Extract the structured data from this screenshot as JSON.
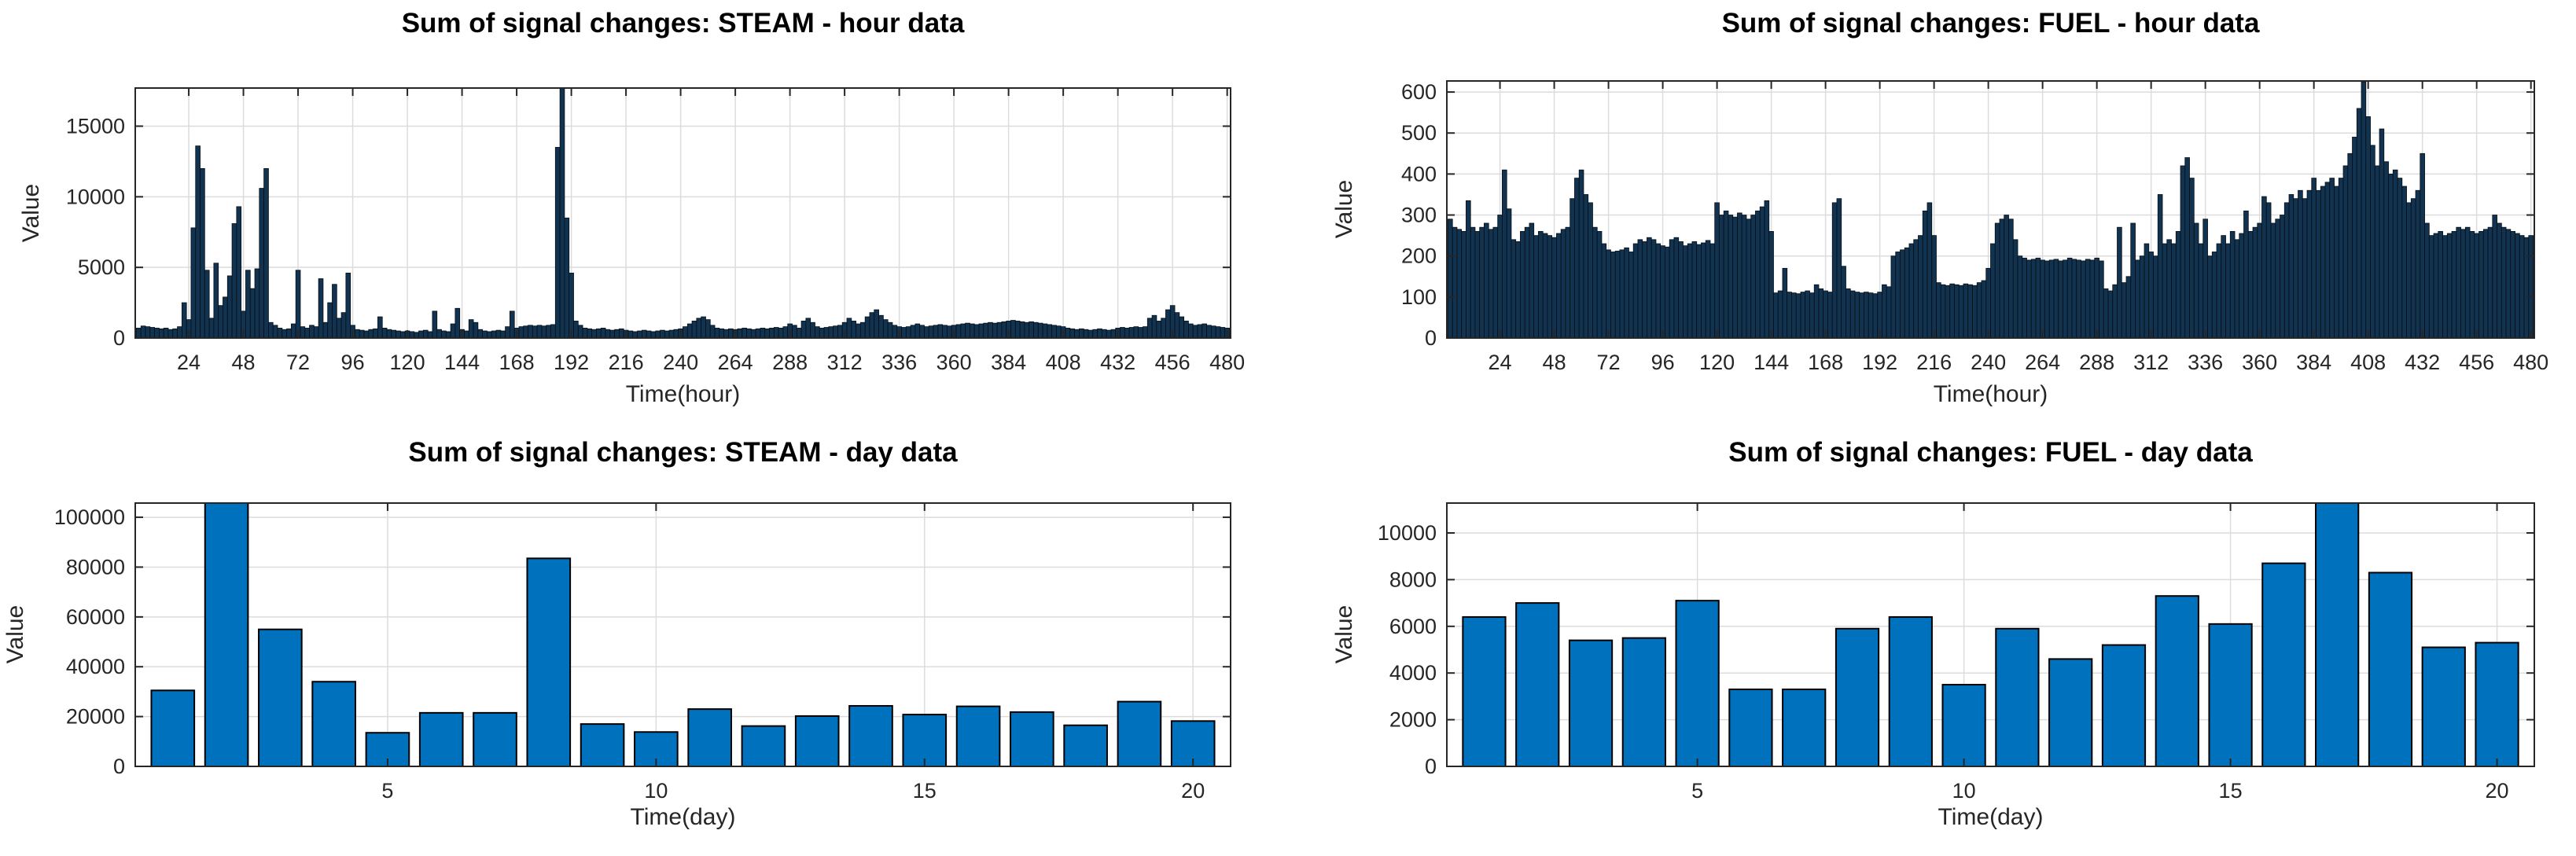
{
  "chart_data": [
    {
      "id": "steam-hour",
      "type": "bar",
      "title": "Sum of signal changes: STEAM - hour data",
      "xlabel": "Time(hour)",
      "ylabel": "Value",
      "x_start": 2,
      "x_step": 2,
      "xlim": [
        0.5,
        481.5
      ],
      "ylim": [
        0,
        17700
      ],
      "xticks": [
        24,
        48,
        72,
        96,
        120,
        144,
        168,
        192,
        216,
        240,
        264,
        288,
        312,
        336,
        360,
        384,
        408,
        432,
        456,
        480
      ],
      "yticks": [
        0,
        5000,
        10000,
        15000
      ],
      "grid": true,
      "bar_color": "#123350",
      "bar_edge": "#050d15",
      "bar_edge_width": 0.8,
      "bar_rel_width": 1.0,
      "values": [
        700,
        850,
        800,
        750,
        700,
        650,
        700,
        600,
        650,
        800,
        2500,
        1300,
        7800,
        13600,
        12000,
        4800,
        1400,
        5300,
        2300,
        2900,
        4400,
        8100,
        9300,
        1900,
        4800,
        3500,
        4900,
        10600,
        12000,
        1100,
        900,
        700,
        600,
        650,
        1000,
        4800,
        800,
        700,
        900,
        800,
        4200,
        1100,
        2500,
        3800,
        1400,
        1800,
        4600,
        900,
        600,
        550,
        500,
        600,
        650,
        1500,
        700,
        600,
        550,
        500,
        450,
        500,
        450,
        400,
        500,
        550,
        450,
        1900,
        600,
        500,
        450,
        1000,
        2100,
        600,
        500,
        1300,
        1100,
        600,
        500,
        450,
        500,
        550,
        500,
        800,
        1900,
        700,
        800,
        850,
        900,
        850,
        900,
        850,
        900,
        950,
        13500,
        17700,
        8500,
        4600,
        1200,
        900,
        700,
        650,
        600,
        650,
        700,
        600,
        550,
        600,
        650,
        550,
        500,
        450,
        500,
        550,
        500,
        450,
        500,
        550,
        500,
        550,
        600,
        650,
        800,
        1000,
        1200,
        1400,
        1500,
        1300,
        900,
        700,
        650,
        600,
        650,
        600,
        650,
        700,
        650,
        600,
        650,
        700,
        650,
        700,
        750,
        700,
        800,
        1000,
        900,
        700,
        1200,
        1400,
        1100,
        800,
        700,
        750,
        800,
        850,
        900,
        1100,
        1400,
        1200,
        1000,
        1100,
        1500,
        1800,
        2000,
        1600,
        1300,
        1100,
        900,
        800,
        750,
        800,
        900,
        1000,
        900,
        800,
        850,
        900,
        950,
        900,
        850,
        900,
        950,
        1000,
        1050,
        1000,
        950,
        1000,
        1050,
        1100,
        1050,
        1100,
        1150,
        1200,
        1250,
        1200,
        1150,
        1100,
        1150,
        1100,
        1050,
        1000,
        950,
        900,
        850,
        800,
        700,
        650,
        600,
        650,
        600,
        550,
        600,
        650,
        600,
        550,
        600,
        700,
        750,
        700,
        750,
        800,
        750,
        800,
        1400,
        1600,
        1200,
        1400,
        2000,
        2300,
        1800,
        1500,
        1200,
        1000,
        900,
        950,
        1000,
        900,
        850,
        800,
        750,
        700
      ]
    },
    {
      "id": "fuel-hour",
      "type": "bar",
      "title": "Sum of signal changes: FUEL - hour data",
      "xlabel": "Time(hour)",
      "ylabel": "Value",
      "x_start": 2,
      "x_step": 2,
      "xlim": [
        0.5,
        481.5
      ],
      "ylim": [
        0,
        627
      ],
      "xticks": [
        24,
        48,
        72,
        96,
        120,
        144,
        168,
        192,
        216,
        240,
        264,
        288,
        312,
        336,
        360,
        384,
        408,
        432,
        456,
        480
      ],
      "yticks": [
        0,
        100,
        200,
        300,
        400,
        500,
        600
      ],
      "grid": true,
      "bar_color": "#123350",
      "bar_edge": "#050d15",
      "bar_edge_width": 0.8,
      "bar_rel_width": 1.0,
      "values": [
        290,
        270,
        265,
        260,
        335,
        270,
        260,
        270,
        280,
        265,
        270,
        300,
        410,
        315,
        240,
        235,
        260,
        270,
        280,
        250,
        260,
        255,
        250,
        245,
        255,
        265,
        270,
        340,
        390,
        410,
        350,
        330,
        270,
        260,
        230,
        215,
        210,
        212,
        215,
        220,
        210,
        230,
        240,
        235,
        245,
        240,
        230,
        225,
        222,
        240,
        245,
        235,
        225,
        230,
        235,
        228,
        232,
        238,
        230,
        330,
        300,
        310,
        300,
        295,
        305,
        300,
        290,
        300,
        310,
        320,
        335,
        260,
        110,
        115,
        170,
        112,
        110,
        108,
        112,
        115,
        110,
        130,
        120,
        115,
        112,
        330,
        340,
        175,
        120,
        115,
        112,
        110,
        112,
        110,
        108,
        112,
        130,
        125,
        200,
        210,
        215,
        220,
        230,
        240,
        250,
        310,
        330,
        250,
        135,
        130,
        128,
        132,
        130,
        128,
        132,
        130,
        128,
        135,
        140,
        170,
        230,
        280,
        290,
        300,
        290,
        240,
        200,
        195,
        190,
        192,
        195,
        190,
        188,
        190,
        192,
        188,
        190,
        195,
        192,
        190,
        188,
        192,
        190,
        195,
        188,
        120,
        115,
        130,
        270,
        135,
        150,
        280,
        190,
        200,
        230,
        210,
        200,
        350,
        230,
        240,
        230,
        260,
        420,
        440,
        390,
        280,
        230,
        290,
        200,
        210,
        230,
        250,
        230,
        260,
        240,
        255,
        310,
        260,
        270,
        280,
        345,
        330,
        280,
        290,
        300,
        330,
        350,
        340,
        360,
        340,
        360,
        390,
        360,
        370,
        380,
        390,
        370,
        390,
        420,
        450,
        490,
        560,
        625,
        540,
        470,
        420,
        510,
        430,
        400,
        410,
        390,
        370,
        330,
        340,
        360,
        450,
        280,
        250,
        255,
        260,
        250,
        255,
        260,
        270,
        265,
        270,
        260,
        255,
        260,
        265,
        270,
        300,
        280,
        270,
        265,
        260,
        255,
        250,
        245,
        250
      ]
    },
    {
      "id": "steam-day",
      "type": "bar",
      "title": "Sum of signal changes: STEAM - day data",
      "xlabel": "Time(day)",
      "ylabel": "Value",
      "x_start": 1,
      "x_step": 1,
      "xlim": [
        0.3,
        20.7
      ],
      "ylim": [
        0,
        105700
      ],
      "xticks": [
        5,
        10,
        15,
        20
      ],
      "yticks": [
        0,
        20000,
        40000,
        60000,
        80000,
        100000
      ],
      "grid": false,
      "bar_color": "#0072BD",
      "bar_edge": "#000000",
      "bar_edge_width": 2,
      "bar_rel_width": 0.8,
      "values": [
        30500,
        106000,
        55000,
        34000,
        13500,
        21500,
        21500,
        83500,
        17000,
        13800,
        23000,
        16200,
        20200,
        24300,
        20800,
        24100,
        21800,
        16500,
        26000,
        18200
      ]
    },
    {
      "id": "fuel-day",
      "type": "bar",
      "title": "Sum of signal changes: FUEL - day data",
      "xlabel": "Time(day)",
      "ylabel": "Value",
      "x_start": 1,
      "x_step": 1,
      "xlim": [
        0.3,
        20.7
      ],
      "ylim": [
        0,
        11280
      ],
      "xticks": [
        5,
        10,
        15,
        20
      ],
      "yticks": [
        0,
        2000,
        4000,
        6000,
        8000,
        10000
      ],
      "grid": false,
      "bar_color": "#0072BD",
      "bar_edge": "#000000",
      "bar_edge_width": 2,
      "bar_rel_width": 0.8,
      "values": [
        6400,
        7000,
        5400,
        5500,
        7100,
        3300,
        3300,
        5900,
        6400,
        3500,
        5900,
        4600,
        5200,
        7300,
        6100,
        8700,
        11600,
        8300,
        5100,
        5300
      ]
    }
  ]
}
